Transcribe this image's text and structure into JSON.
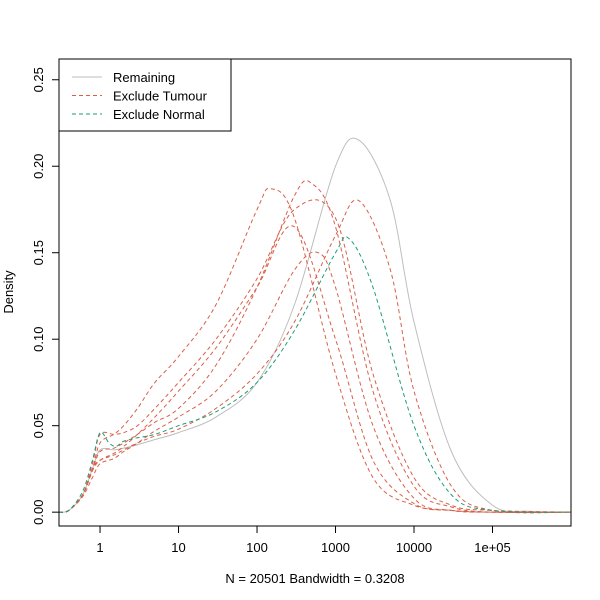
{
  "chart_data": {
    "type": "line",
    "title": "",
    "xlabel": "N = 20501   Bandwidth = 0.3208",
    "ylabel": "Density",
    "x_scale": "log",
    "xlim": [
      0.3,
      1000000
    ],
    "ylim": [
      -0.008,
      0.262
    ],
    "x_ticks": [
      {
        "value": 1,
        "label": "1"
      },
      {
        "value": 10,
        "label": "10"
      },
      {
        "value": 100,
        "label": "100"
      },
      {
        "value": 1000,
        "label": "1000"
      },
      {
        "value": 10000,
        "label": "10000"
      },
      {
        "value": 100000,
        "label": "1e+05"
      }
    ],
    "y_ticks": [
      {
        "value": 0.0,
        "label": "0.00"
      },
      {
        "value": 0.05,
        "label": "0.05"
      },
      {
        "value": 0.1,
        "label": "0.10"
      },
      {
        "value": 0.15,
        "label": "0.15"
      },
      {
        "value": 0.2,
        "label": "0.20"
      },
      {
        "value": 0.25,
        "label": "0.25"
      }
    ],
    "grid": false,
    "legend_position": "top-left",
    "legend": [
      {
        "label": "Remaining",
        "color": "#bebebe",
        "dash": "solid"
      },
      {
        "label": "Exclude Tumour",
        "color": "#d95f4a",
        "dash": "dashed"
      },
      {
        "label": "Exclude Normal",
        "color": "#1b9e77",
        "dash": "dashed"
      }
    ],
    "series": [
      {
        "group": "Remaining",
        "color": "#bebebe",
        "dash": "solid",
        "x": [
          0.3,
          0.4,
          0.6,
          0.8,
          1,
          1.5,
          2,
          3,
          5,
          10,
          30,
          100,
          300,
          1000,
          2000,
          5000,
          10000,
          30000,
          100000,
          300000,
          1000000
        ],
        "y": [
          0,
          0.001,
          0.01,
          0.025,
          0.036,
          0.036,
          0.037,
          0.039,
          0.042,
          0.046,
          0.055,
          0.075,
          0.12,
          0.2,
          0.215,
          0.18,
          0.11,
          0.035,
          0.004,
          0.0005,
          0
        ]
      },
      {
        "group": "Exclude Tumour",
        "color": "#d95f4a",
        "dash": "dashed",
        "x": [
          0.3,
          0.4,
          0.6,
          0.8,
          1,
          1.5,
          2,
          3,
          5,
          10,
          30,
          100,
          150,
          300,
          1000,
          3000,
          10000,
          30000,
          100000,
          1000000
        ],
        "y": [
          0,
          0.001,
          0.01,
          0.025,
          0.04,
          0.045,
          0.05,
          0.06,
          0.075,
          0.09,
          0.12,
          0.175,
          0.187,
          0.17,
          0.08,
          0.02,
          0.004,
          0.001,
          0,
          0
        ]
      },
      {
        "group": "Exclude Tumour",
        "color": "#d95f4a",
        "dash": "dashed",
        "x": [
          0.3,
          0.4,
          0.6,
          0.8,
          1,
          1.5,
          2,
          3,
          5,
          10,
          30,
          100,
          300,
          500,
          1000,
          3000,
          10000,
          30000,
          100000,
          1000000
        ],
        "y": [
          0,
          0.001,
          0.01,
          0.024,
          0.035,
          0.037,
          0.04,
          0.045,
          0.052,
          0.06,
          0.085,
          0.13,
          0.183,
          0.19,
          0.165,
          0.07,
          0.015,
          0.003,
          0,
          0
        ]
      },
      {
        "group": "Exclude Tumour",
        "color": "#d95f4a",
        "dash": "dashed",
        "x": [
          0.3,
          0.4,
          0.6,
          0.8,
          1,
          1.5,
          2,
          3,
          5,
          10,
          30,
          100,
          300,
          1000,
          3000,
          10000,
          30000,
          100000,
          1000000
        ],
        "y": [
          0,
          0.001,
          0.01,
          0.028,
          0.045,
          0.045,
          0.046,
          0.05,
          0.06,
          0.075,
          0.1,
          0.135,
          0.175,
          0.17,
          0.08,
          0.02,
          0.004,
          0.001,
          0
        ]
      },
      {
        "group": "Exclude Tumour",
        "color": "#d95f4a",
        "dash": "dashed",
        "x": [
          0.3,
          0.4,
          0.6,
          0.8,
          1,
          1.5,
          2,
          3,
          5,
          10,
          30,
          100,
          300,
          1000,
          2000,
          5000,
          10000,
          30000,
          100000,
          1000000
        ],
        "y": [
          0,
          0.001,
          0.01,
          0.025,
          0.03,
          0.033,
          0.036,
          0.04,
          0.044,
          0.048,
          0.06,
          0.08,
          0.11,
          0.16,
          0.18,
          0.14,
          0.07,
          0.015,
          0.001,
          0
        ]
      },
      {
        "group": "Exclude Tumour",
        "color": "#d95f4a",
        "dash": "dashed",
        "x": [
          0.3,
          0.4,
          0.6,
          0.8,
          1,
          1.5,
          2,
          3,
          5,
          10,
          30,
          100,
          300,
          1000,
          3000,
          10000,
          30000,
          100000,
          1000000
        ],
        "y": [
          0,
          0.001,
          0.01,
          0.024,
          0.03,
          0.034,
          0.038,
          0.045,
          0.055,
          0.07,
          0.095,
          0.13,
          0.165,
          0.1,
          0.03,
          0.005,
          0.001,
          0,
          0
        ]
      },
      {
        "group": "Exclude Tumour",
        "color": "#d95f4a",
        "dash": "dashed",
        "x": [
          0.3,
          0.4,
          0.6,
          0.8,
          1,
          1.5,
          2,
          3,
          5,
          10,
          30,
          100,
          300,
          600,
          1000,
          3000,
          10000,
          30000,
          100000,
          1000000
        ],
        "y": [
          0,
          0.001,
          0.009,
          0.02,
          0.028,
          0.031,
          0.035,
          0.04,
          0.047,
          0.055,
          0.07,
          0.1,
          0.14,
          0.15,
          0.13,
          0.05,
          0.008,
          0.001,
          0,
          0
        ]
      },
      {
        "group": "Exclude Normal",
        "color": "#1b9e77",
        "dash": "dashed",
        "x": [
          0.3,
          0.4,
          0.6,
          0.8,
          1,
          1.3,
          1.6,
          2,
          3,
          5,
          10,
          30,
          100,
          300,
          1000,
          1500,
          3000,
          10000,
          30000,
          100000,
          1000000
        ],
        "y": [
          0,
          0.001,
          0.012,
          0.03,
          0.046,
          0.04,
          0.038,
          0.041,
          0.043,
          0.045,
          0.05,
          0.058,
          0.075,
          0.105,
          0.15,
          0.158,
          0.13,
          0.05,
          0.01,
          0.001,
          0
        ]
      }
    ]
  }
}
